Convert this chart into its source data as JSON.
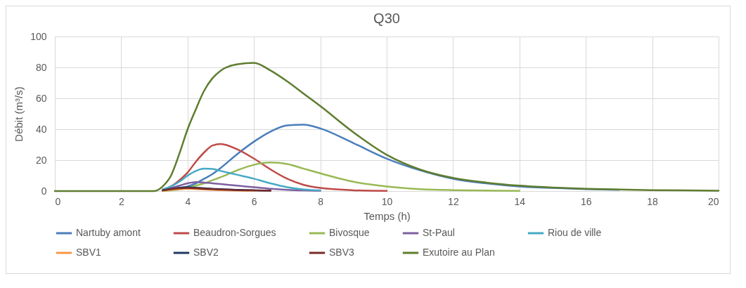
{
  "chart_data": {
    "type": "line",
    "title": "Q30",
    "xlabel": "Temps (h)",
    "ylabel": "Débit (m³/s)",
    "x": [
      0,
      3,
      3.25,
      3.5,
      3.75,
      4,
      4.25,
      4.5,
      4.75,
      5,
      5.5,
      6,
      6.5,
      7,
      7.5,
      8,
      9,
      10,
      11,
      12,
      13,
      14,
      15,
      16,
      17,
      18,
      19,
      20
    ],
    "xlim": [
      0,
      20
    ],
    "xticks": [
      0,
      2,
      4,
      6,
      8,
      10,
      12,
      14,
      16,
      18,
      20
    ],
    "ylim": [
      0,
      100
    ],
    "yticks": [
      0,
      20,
      40,
      60,
      80,
      100
    ],
    "grid": true,
    "legend": "bottom",
    "marker": "none",
    "line_style": "solid",
    "series": [
      {
        "name": "Nartuby amont",
        "color": "#4a7ebb",
        "values": [
          null,
          null,
          0.5,
          1.5,
          2,
          3,
          5,
          8,
          11,
          15,
          24,
          32,
          38.5,
          42.5,
          43,
          40.5,
          31,
          21,
          13.5,
          8,
          5,
          3,
          2,
          1.3,
          0.8,
          null,
          null,
          null
        ]
      },
      {
        "name": "Beaudron-Sorgues",
        "color": "#be4b48",
        "values": [
          null,
          null,
          1,
          3,
          7,
          12,
          19,
          25,
          29.5,
          30.5,
          27,
          21,
          14,
          8,
          4,
          2,
          0.5,
          0.1,
          null,
          null,
          null,
          null,
          null,
          null,
          null,
          null,
          null,
          null
        ]
      },
      {
        "name": "Bivosque",
        "color": "#98b954",
        "values": [
          null,
          null,
          0.2,
          0.5,
          1,
          2,
          3.5,
          5,
          7,
          9,
          13.5,
          17,
          18.5,
          17.5,
          14.5,
          11.5,
          6,
          3,
          1.3,
          0.6,
          0.3,
          0.1,
          null,
          null,
          null,
          null,
          null,
          null
        ]
      },
      {
        "name": "St-Paul",
        "color": "#7d60a0",
        "values": [
          null,
          null,
          0.8,
          2,
          3.5,
          5,
          5.8,
          5.5,
          5,
          4.5,
          3.5,
          2.5,
          1.5,
          0.8,
          0.4,
          0.2,
          null,
          null,
          null,
          null,
          null,
          null,
          null,
          null,
          null,
          null,
          null,
          null
        ]
      },
      {
        "name": "Riou de ville",
        "color": "#46aac5",
        "values": [
          null,
          null,
          1,
          3,
          6,
          10,
          13,
          14.5,
          14.3,
          13,
          10.5,
          8,
          5,
          2.5,
          1,
          0.4,
          null,
          null,
          null,
          null,
          null,
          null,
          null,
          null,
          null,
          null,
          null,
          null
        ]
      },
      {
        "name": "SBV1",
        "color": "#f79646",
        "values": [
          null,
          null,
          0.3,
          0.8,
          1.2,
          1.5,
          1.3,
          1,
          0.8,
          0.6,
          0.3,
          0.2,
          null,
          null,
          null,
          null,
          null,
          null,
          null,
          null,
          null,
          null,
          null,
          null,
          null,
          null,
          null,
          null
        ]
      },
      {
        "name": "SBV2",
        "color": "#1f3864",
        "values": [
          null,
          null,
          0.5,
          1.5,
          2.2,
          2.5,
          2.2,
          1.8,
          1.5,
          1.2,
          0.8,
          0.5,
          0.3,
          null,
          null,
          null,
          null,
          null,
          null,
          null,
          null,
          null,
          null,
          null,
          null,
          null,
          null,
          null
        ]
      },
      {
        "name": "SBV3",
        "color": "#772c2a",
        "values": [
          null,
          null,
          0.4,
          1.2,
          1.8,
          2,
          1.8,
          1.5,
          1.2,
          1,
          0.6,
          0.4,
          0.2,
          null,
          null,
          null,
          null,
          null,
          null,
          null,
          null,
          null,
          null,
          null,
          null,
          null,
          null,
          null
        ]
      },
      {
        "name": "Exutoire au Plan",
        "color": "#5e7d2f",
        "values": [
          0,
          0,
          3,
          10,
          24,
          40,
          53,
          65,
          73,
          78,
          82,
          83,
          78,
          71,
          63,
          55,
          38,
          23.5,
          14,
          8.5,
          5.5,
          3.5,
          2.3,
          1.5,
          1,
          0.6,
          0.4,
          0.2
        ]
      }
    ]
  }
}
